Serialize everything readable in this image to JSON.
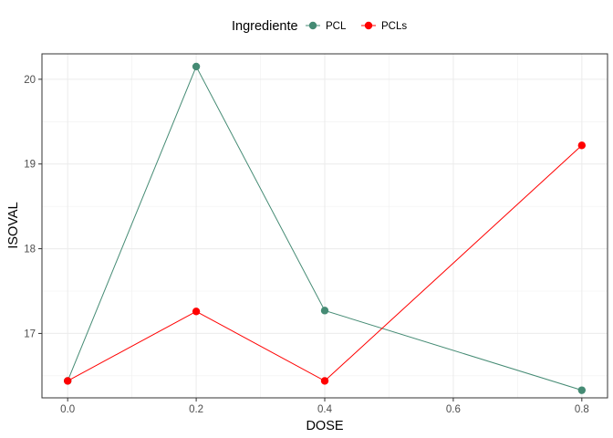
{
  "chart_data": {
    "type": "line",
    "title": "",
    "xlabel": "DOSE",
    "ylabel": "ISOVAL",
    "xlim": [
      -0.04,
      0.84
    ],
    "ylim": [
      16.24,
      20.3
    ],
    "x_ticks": [
      0.0,
      0.2,
      0.4,
      0.6,
      0.8
    ],
    "x_tick_labels": [
      "0.0",
      "0.2",
      "0.4",
      "0.6",
      "0.8"
    ],
    "y_ticks": [
      17,
      18,
      19,
      20
    ],
    "y_tick_labels": [
      "17",
      "18",
      "19",
      "20"
    ],
    "grid": true,
    "legend": {
      "title": "Ingrediente",
      "position": "top"
    },
    "series": [
      {
        "name": "PCL",
        "color": "#458b74",
        "x": [
          0.0,
          0.2,
          0.4,
          0.8
        ],
        "y": [
          16.44,
          20.15,
          17.27,
          16.33
        ]
      },
      {
        "name": "PCLs",
        "color": "#ff0000",
        "x": [
          0.0,
          0.2,
          0.4,
          0.8
        ],
        "y": [
          16.44,
          17.26,
          16.44,
          19.22
        ]
      }
    ]
  }
}
